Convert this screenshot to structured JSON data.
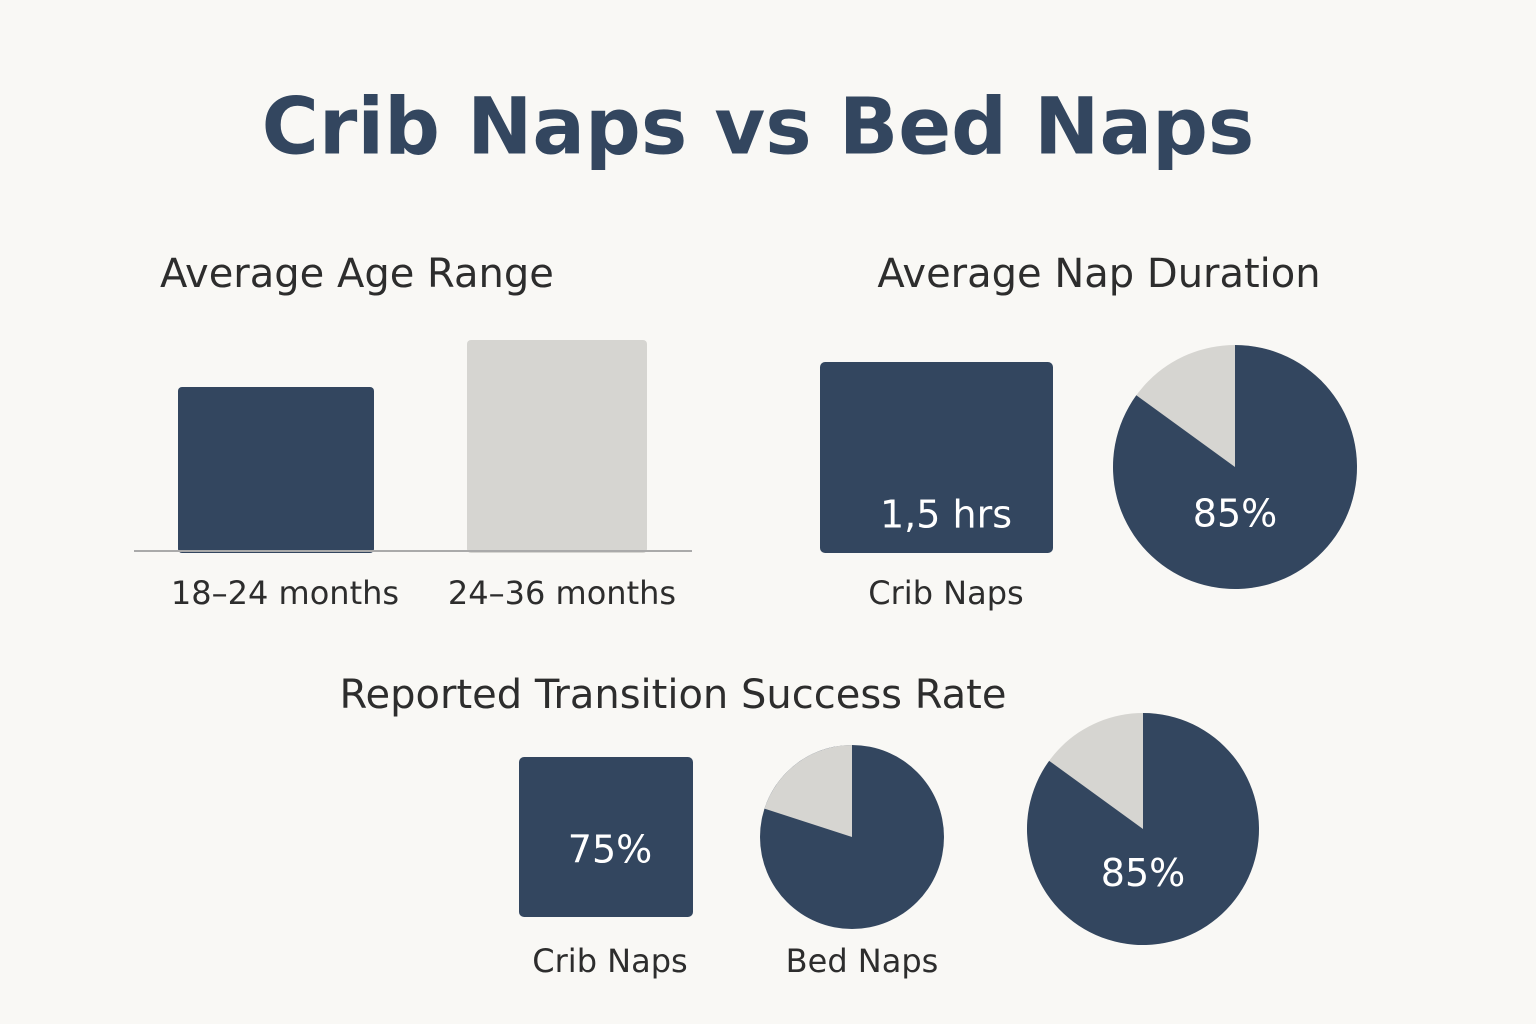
{
  "title": "Crib Naps vs Bed Naps",
  "age_range": {
    "title": "Average Age Range",
    "labels": [
      "18–24 months",
      "24–36 months"
    ]
  },
  "nap_duration": {
    "title": "Average Nap Duration",
    "crib_value": "1,5 hrs",
    "crib_label": "Crib Naps",
    "pie": {
      "value": 85,
      "label": "85%"
    }
  },
  "transition": {
    "title": "Reported Transition Success Rate",
    "crib_value": "75%",
    "crib_label": "Crib Naps",
    "bed_label": "Bed Naps",
    "pie": {
      "value": 85,
      "label": "85%"
    }
  }
}
